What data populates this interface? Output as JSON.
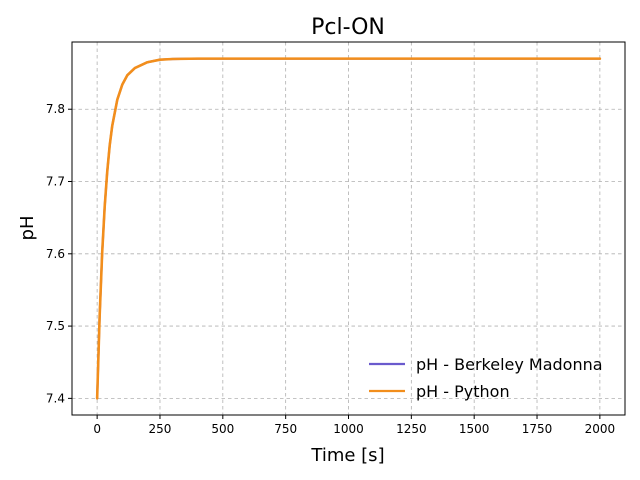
{
  "chart_data": {
    "type": "line",
    "title": "Pcl-ON",
    "xlabel": "Time [s]",
    "ylabel": "pH",
    "xlim": [
      -100,
      2100
    ],
    "ylim": [
      7.377,
      7.893
    ],
    "xticks": [
      0,
      250,
      500,
      750,
      1000,
      1250,
      1500,
      1750,
      2000
    ],
    "yticks": [
      7.4,
      7.5,
      7.6,
      7.7,
      7.8
    ],
    "grid": true,
    "legend_position": "lower-right",
    "series": [
      {
        "name": "pH - Berkeley Madonna",
        "color": "#6a5acd",
        "x": [
          0,
          10,
          20,
          30,
          40,
          50,
          60,
          80,
          100,
          120,
          150,
          200,
          250,
          300,
          400,
          500,
          750,
          1000,
          1500,
          2000
        ],
        "y": [
          7.4,
          7.514,
          7.601,
          7.665,
          7.713,
          7.75,
          7.777,
          7.813,
          7.834,
          7.847,
          7.857,
          7.865,
          7.8685,
          7.8695,
          7.87,
          7.87,
          7.87,
          7.87,
          7.87,
          7.87
        ]
      },
      {
        "name": "pH - Python",
        "color": "#f28e1c",
        "x": [
          0,
          10,
          20,
          30,
          40,
          50,
          60,
          80,
          100,
          120,
          150,
          200,
          250,
          300,
          400,
          500,
          750,
          1000,
          1500,
          2000
        ],
        "y": [
          7.4,
          7.514,
          7.601,
          7.665,
          7.713,
          7.75,
          7.777,
          7.813,
          7.834,
          7.847,
          7.857,
          7.865,
          7.8685,
          7.8695,
          7.87,
          7.87,
          7.87,
          7.87,
          7.87,
          7.87
        ]
      }
    ]
  }
}
